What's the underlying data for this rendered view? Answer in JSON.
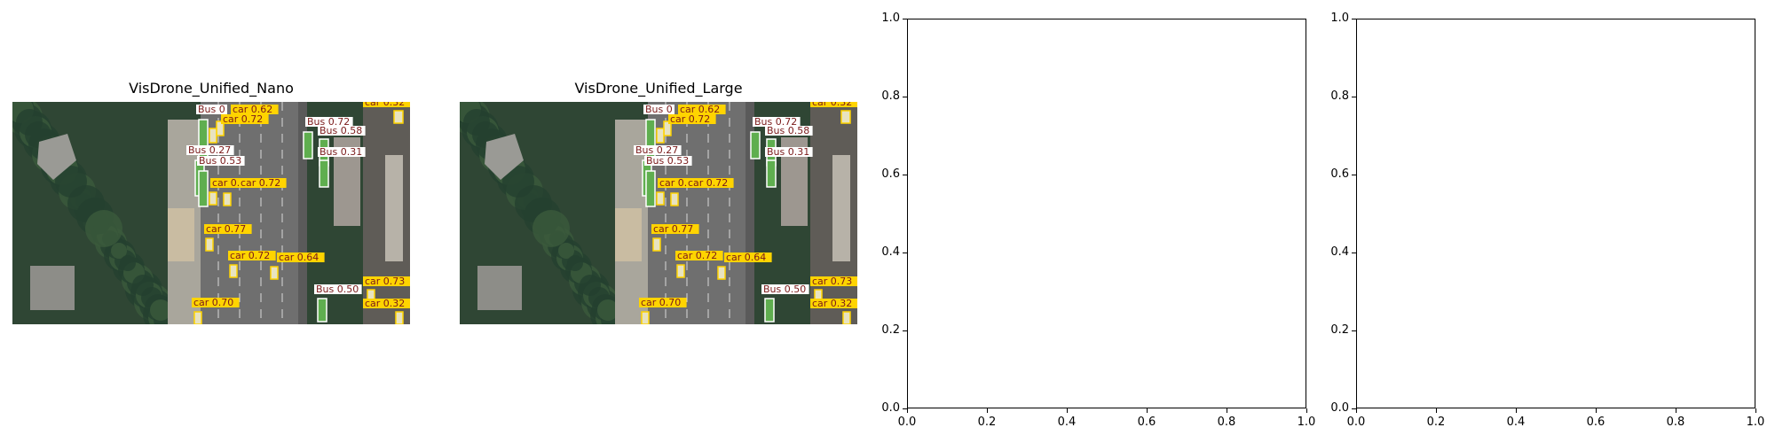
{
  "panels": [
    {
      "title": "VisDrone_Unified_Nano",
      "detections": [
        {
          "cls": "Bus",
          "conf": "0",
          "color": "#ffffff"
        },
        {
          "cls": "car",
          "conf": "0.62",
          "color": "#ffd400"
        },
        {
          "cls": "car",
          "conf": "0.72",
          "color": "#ffd400"
        },
        {
          "cls": "car",
          "conf": "0.32",
          "color": "#ffd400"
        },
        {
          "cls": "Bus",
          "conf": "0.72",
          "color": "#ffffff"
        },
        {
          "cls": "Bus",
          "conf": "0.58",
          "color": "#ffffff"
        },
        {
          "cls": "Bus",
          "conf": "0.27",
          "color": "#ffffff"
        },
        {
          "cls": "Bus",
          "conf": "0.53",
          "color": "#ffffff"
        },
        {
          "cls": "Bus",
          "conf": "0.31",
          "color": "#ffffff"
        },
        {
          "cls": "car",
          "conf": "0.72",
          "color": "#ffd400"
        },
        {
          "cls": "car",
          "conf": "0.72",
          "color": "#ffd400"
        },
        {
          "cls": "car",
          "conf": "0.77",
          "color": "#ffd400"
        },
        {
          "cls": "car",
          "conf": "0.72",
          "color": "#ffd400"
        },
        {
          "cls": "car",
          "conf": "0.64",
          "color": "#ffd400"
        },
        {
          "cls": "car",
          "conf": "0.73",
          "color": "#ffd400"
        },
        {
          "cls": "Bus",
          "conf": "0.50",
          "color": "#ffffff"
        },
        {
          "cls": "car",
          "conf": "0.70",
          "color": "#ffd400"
        },
        {
          "cls": "car",
          "conf": "0.32",
          "color": "#ffd400"
        }
      ]
    },
    {
      "title": "VisDrone_Unified_Large",
      "detections": [
        {
          "cls": "Bus",
          "conf": "0",
          "color": "#ffffff"
        },
        {
          "cls": "car",
          "conf": "0.62",
          "color": "#ffd400"
        },
        {
          "cls": "car",
          "conf": "0.72",
          "color": "#ffd400"
        },
        {
          "cls": "car",
          "conf": "0.32",
          "color": "#ffd400"
        },
        {
          "cls": "Bus",
          "conf": "0.72",
          "color": "#ffffff"
        },
        {
          "cls": "Bus",
          "conf": "0.58",
          "color": "#ffffff"
        },
        {
          "cls": "Bus",
          "conf": "0.27",
          "color": "#ffffff"
        },
        {
          "cls": "Bus",
          "conf": "0.53",
          "color": "#ffffff"
        },
        {
          "cls": "Bus",
          "conf": "0.31",
          "color": "#ffffff"
        },
        {
          "cls": "car",
          "conf": "0.72",
          "color": "#ffd400"
        },
        {
          "cls": "car",
          "conf": "0.72",
          "color": "#ffd400"
        },
        {
          "cls": "car",
          "conf": "0.77",
          "color": "#ffd400"
        },
        {
          "cls": "car",
          "conf": "0.72",
          "color": "#ffd400"
        },
        {
          "cls": "car",
          "conf": "0.64",
          "color": "#ffd400"
        },
        {
          "cls": "car",
          "conf": "0.73",
          "color": "#ffd400"
        },
        {
          "cls": "Bus",
          "conf": "0.50",
          "color": "#ffffff"
        },
        {
          "cls": "car",
          "conf": "0.70",
          "color": "#ffd400"
        },
        {
          "cls": "car",
          "conf": "0.32",
          "color": "#ffd400"
        }
      ]
    }
  ],
  "empty_axes": [
    {
      "xlim": [
        0.0,
        1.0
      ],
      "ylim": [
        0.0,
        1.0
      ],
      "xticks": [
        "0.0",
        "0.2",
        "0.4",
        "0.6",
        "0.8",
        "1.0"
      ],
      "yticks": [
        "0.0",
        "0.2",
        "0.4",
        "0.6",
        "0.8",
        "1.0"
      ]
    },
    {
      "xlim": [
        0.0,
        1.0
      ],
      "ylim": [
        0.0,
        1.0
      ],
      "xticks": [
        "0.0",
        "0.2",
        "0.4",
        "0.6",
        "0.8",
        "1.0"
      ],
      "yticks": [
        "0.0",
        "0.2",
        "0.4",
        "0.6",
        "0.8",
        "1.0"
      ]
    }
  ]
}
